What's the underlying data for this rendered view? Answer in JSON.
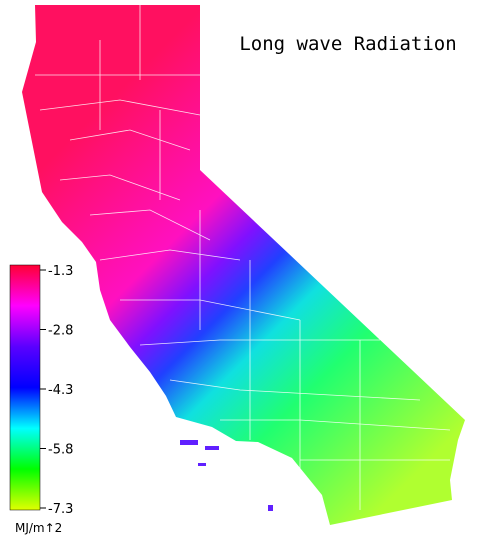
{
  "title": "Long wave Radiation",
  "colorbar": {
    "lim": [
      -7.3,
      -1.3
    ],
    "ticks": [
      -1.3,
      -2.8,
      -4.3,
      -5.8,
      -7.3
    ],
    "label": "MJ/m↑2",
    "colors": [
      "#ff0033",
      "#ff00ff",
      "#5a00ff",
      "#0000ff",
      "#00ffff",
      "#00ff00",
      "#e0ff00"
    ]
  }
}
